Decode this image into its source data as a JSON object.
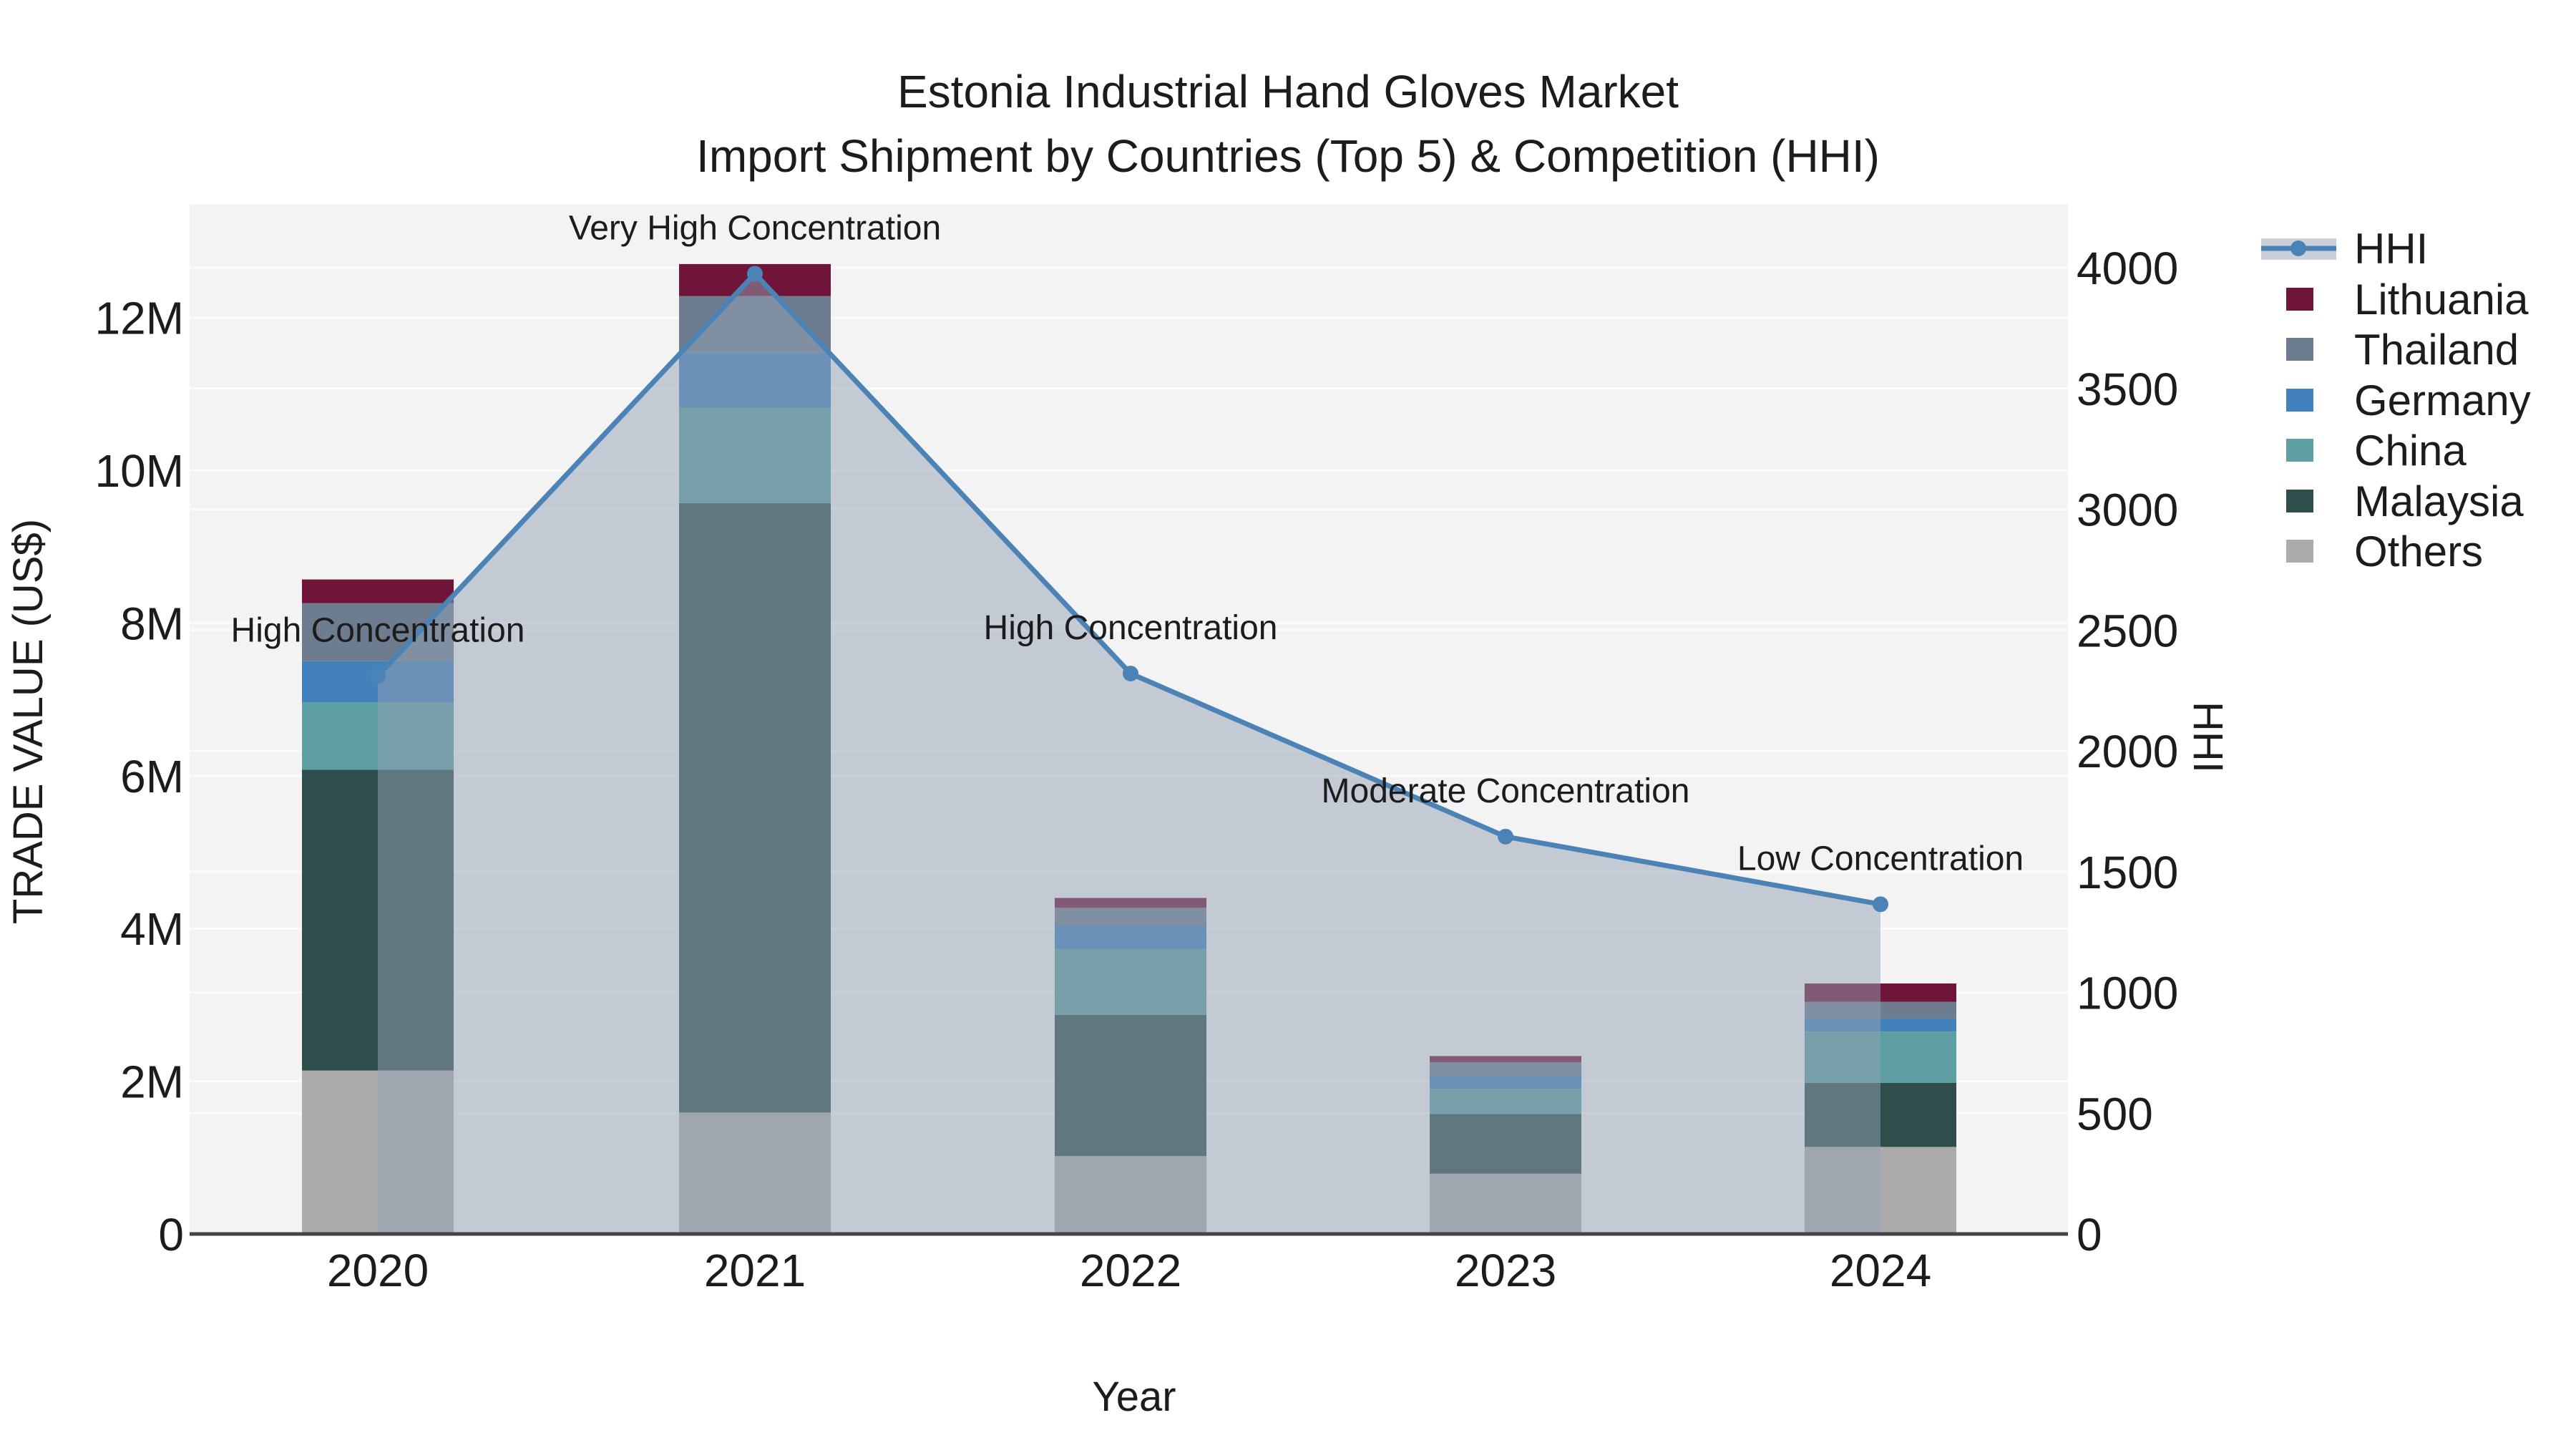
{
  "title": {
    "line1": "Estonia Industrial Hand Gloves Market",
    "line2": "Import Shipment by Countries (Top 5) & Competition (HHI)"
  },
  "axes": {
    "x_label": "Year",
    "y_left_label": "TRADE VALUE (US$)",
    "y_right_label": "HHI",
    "y_left_ticks": [
      "0",
      "2M",
      "4M",
      "6M",
      "8M",
      "10M",
      "12M"
    ],
    "y_right_ticks": [
      "0",
      "500",
      "1000",
      "1500",
      "2000",
      "2500",
      "3000",
      "3500",
      "4000"
    ]
  },
  "colors": {
    "plot_background": "#f3f3f3",
    "gridline": "#fbfbfb",
    "axis_spine": "#444444",
    "hhi_line": "#4c83b6",
    "hhi_area_fill": "rgba(148,162,180,0.5)",
    "text": "#1c1c1c"
  },
  "legend": {
    "order": [
      "HHI",
      "Lithuania",
      "Thailand",
      "Germany",
      "China",
      "Malaysia",
      "Others"
    ]
  },
  "chart_data": {
    "type": "bar",
    "subtype": "stacked-bars-with-line",
    "categories": [
      "2020",
      "2021",
      "2022",
      "2023",
      "2024"
    ],
    "value_unit": "US$ millions (left axis), HHI index (right axis)",
    "series": [
      {
        "name": "Others",
        "color": "#ababab",
        "values": [
          2.14,
          1.59,
          1.02,
          0.79,
          1.14
        ]
      },
      {
        "name": "Malaysia",
        "color": "#2e4d4b",
        "values": [
          3.94,
          7.98,
          1.85,
          0.78,
          0.84
        ]
      },
      {
        "name": "China",
        "color": "#5d9fa2",
        "values": [
          0.88,
          1.25,
          0.86,
          0.33,
          0.67
        ]
      },
      {
        "name": "Germany",
        "color": "#4381bd",
        "values": [
          0.54,
          0.72,
          0.31,
          0.17,
          0.17
        ]
      },
      {
        "name": "Thailand",
        "color": "#6d7c8e",
        "values": [
          0.76,
          0.74,
          0.23,
          0.18,
          0.22
        ]
      },
      {
        "name": "Lithuania",
        "color": "#6e1539",
        "values": [
          0.31,
          0.42,
          0.13,
          0.08,
          0.24
        ]
      }
    ],
    "bar_totals": [
      8.57,
      12.7,
      4.4,
      2.33,
      3.28
    ],
    "line_series": {
      "name": "HHI",
      "color": "#4c83b6",
      "values": [
        2310,
        3975,
        2320,
        1645,
        1365
      ]
    },
    "annotations": [
      "High Concentration",
      "Very High Concentration",
      "High Concentration",
      "Moderate Concentration",
      "Low Concentration"
    ],
    "xlabel": "Year",
    "ylabel_left": "TRADE VALUE (US$)",
    "ylabel_right": "HHI",
    "ylim_left_millions": [
      0,
      13.5
    ],
    "ylim_right": [
      0,
      4265
    ],
    "grid": true,
    "legend_position": "right"
  }
}
